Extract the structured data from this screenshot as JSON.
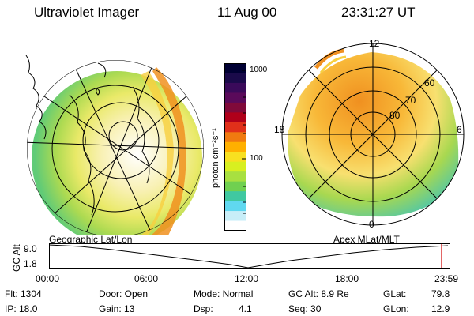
{
  "header": {
    "instrument": "Ultraviolet Imager",
    "date": "11 Aug 00",
    "time": "23:31:27 UT"
  },
  "colorbar": {
    "unit": "photon cm⁻²s⁻¹",
    "ticks": [
      "1000",
      "100"
    ],
    "colors": [
      "#000033",
      "#1a0a4a",
      "#3a0a5a",
      "#5a0a5a",
      "#800a3a",
      "#b0001a",
      "#e0301a",
      "#f07a10",
      "#ffb000",
      "#f8e020",
      "#d8ef20",
      "#a8e040",
      "#70d050",
      "#40c8a0",
      "#60d8f0",
      "#c8eef8",
      "#ffffff"
    ]
  },
  "left_panel": {
    "label": "Geographic Lat/Lon"
  },
  "right_panel": {
    "label": "Apex  MLat/MLT",
    "mlt_labels": [
      "12",
      "18",
      "6",
      "0"
    ],
    "lat_labels": [
      "60",
      "70",
      "80"
    ]
  },
  "timeline": {
    "axis_label": "GC Alt",
    "y_ticks": [
      "9.0",
      "1.8"
    ],
    "x_ticks": [
      "00:00",
      "06:00",
      "12:00",
      "18:00",
      "23:59"
    ],
    "current_fraction": 0.98
  },
  "status": {
    "flt": "Flt: 1304",
    "ip": "IP: 18.0",
    "door": "Door: Open",
    "gain": "Gain: 13",
    "mode": "Mode: Normal",
    "dsp_label": "Dsp:",
    "dsp_value": "4.1",
    "gc_alt": "GC Alt: 8.9 Re",
    "seq": "Seq: 30",
    "glat_label": "GLat:",
    "glat_value": "79.8",
    "glon_label": "GLon:",
    "glon_value": "12.9"
  }
}
